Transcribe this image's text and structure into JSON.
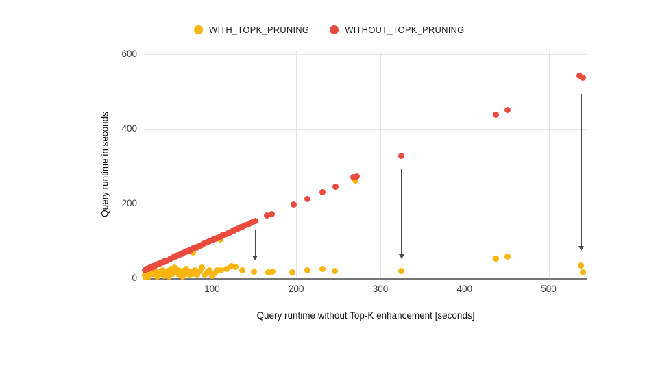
{
  "legend": {
    "series": [
      {
        "label": "WITH_TOPK_PRUNING",
        "color": "#F9B511"
      },
      {
        "label": "WITHOUT_TOPK_PRUNING",
        "color": "#E94C3E"
      }
    ]
  },
  "axes": {
    "x_title": "Query runtime without Top-K enhancement [seconds]",
    "y_title": "Query runtime in seconds"
  },
  "chart_data": {
    "type": "scatter",
    "title": "",
    "xlabel": "Query runtime without Top-K enhancement [seconds]",
    "ylabel": "Query runtime in seconds",
    "xlim": [
      19,
      546
    ],
    "ylim": [
      0,
      608
    ],
    "x_ticks": [
      100,
      200,
      300,
      400,
      500
    ],
    "y_ticks": [
      0,
      200,
      400,
      600
    ],
    "grid": true,
    "legend_position": "top",
    "series": [
      {
        "name": "WITH_TOPK_PRUNING",
        "color": "#F9B511",
        "points": [
          [
            20,
            8
          ],
          [
            21,
            3
          ],
          [
            23,
            14
          ],
          [
            25,
            5
          ],
          [
            27,
            20
          ],
          [
            29,
            10
          ],
          [
            31,
            26
          ],
          [
            33,
            15
          ],
          [
            35,
            4
          ],
          [
            37,
            18
          ],
          [
            39,
            11
          ],
          [
            41,
            22
          ],
          [
            43,
            6
          ],
          [
            45,
            16
          ],
          [
            47,
            19
          ],
          [
            49,
            4
          ],
          [
            51,
            25
          ],
          [
            53,
            12
          ],
          [
            55,
            28
          ],
          [
            57,
            16
          ],
          [
            59,
            22
          ],
          [
            61,
            9
          ],
          [
            63,
            19
          ],
          [
            65,
            5
          ],
          [
            67,
            10
          ],
          [
            69,
            24
          ],
          [
            71,
            13
          ],
          [
            73,
            8
          ],
          [
            75,
            17
          ],
          [
            77,
            68
          ],
          [
            78,
            12
          ],
          [
            80,
            22
          ],
          [
            82,
            9
          ],
          [
            85,
            19
          ],
          [
            88,
            28
          ],
          [
            91,
            8
          ],
          [
            94,
            16
          ],
          [
            97,
            22
          ],
          [
            100,
            6
          ],
          [
            103,
            13
          ],
          [
            106,
            22
          ],
          [
            110,
            103
          ],
          [
            111,
            21
          ],
          [
            117,
            24
          ],
          [
            123,
            32
          ],
          [
            128,
            30
          ],
          [
            136,
            22
          ],
          [
            150,
            18
          ],
          [
            167,
            15
          ],
          [
            172,
            17
          ],
          [
            195,
            15
          ],
          [
            213,
            21
          ],
          [
            231,
            25
          ],
          [
            246,
            19
          ],
          [
            270,
            262
          ],
          [
            325,
            20
          ],
          [
            437,
            53
          ],
          [
            451,
            57
          ],
          [
            538,
            34
          ],
          [
            541,
            16
          ]
        ]
      },
      {
        "name": "WITHOUT_TOPK_PRUNING",
        "color": "#E94C3E",
        "points": [
          [
            20,
            21
          ],
          [
            21,
            23
          ],
          [
            22,
            24
          ],
          [
            24,
            25
          ],
          [
            25,
            27
          ],
          [
            26,
            28
          ],
          [
            28,
            29
          ],
          [
            29,
            31
          ],
          [
            30,
            32
          ],
          [
            32,
            33
          ],
          [
            33,
            35
          ],
          [
            34,
            36
          ],
          [
            36,
            37
          ],
          [
            37,
            39
          ],
          [
            38,
            40
          ],
          [
            40,
            41
          ],
          [
            41,
            43
          ],
          [
            43,
            44
          ],
          [
            44,
            46
          ],
          [
            46,
            47
          ],
          [
            50,
            52
          ],
          [
            51,
            53
          ],
          [
            53,
            55
          ],
          [
            54,
            56
          ],
          [
            56,
            57
          ],
          [
            57,
            59
          ],
          [
            59,
            61
          ],
          [
            60,
            62
          ],
          [
            62,
            64
          ],
          [
            64,
            65
          ],
          [
            65,
            67
          ],
          [
            67,
            69
          ],
          [
            69,
            70
          ],
          [
            70,
            72
          ],
          [
            72,
            74
          ],
          [
            74,
            75
          ],
          [
            75,
            77
          ],
          [
            77,
            79
          ],
          [
            79,
            81
          ],
          [
            81,
            82
          ],
          [
            82,
            84
          ],
          [
            84,
            86
          ],
          [
            86,
            88
          ],
          [
            88,
            90
          ],
          [
            90,
            92
          ],
          [
            92,
            94
          ],
          [
            94,
            96
          ],
          [
            96,
            98
          ],
          [
            98,
            100
          ],
          [
            100,
            102
          ],
          [
            102,
            104
          ],
          [
            104,
            106
          ],
          [
            106,
            108
          ],
          [
            108,
            110
          ],
          [
            110,
            112
          ],
          [
            112,
            114
          ],
          [
            114,
            116
          ],
          [
            117,
            119
          ],
          [
            119,
            121
          ],
          [
            121,
            123
          ],
          [
            124,
            126
          ],
          [
            126,
            128
          ],
          [
            129,
            131
          ],
          [
            131,
            133
          ],
          [
            134,
            136
          ],
          [
            137,
            139
          ],
          [
            140,
            142
          ],
          [
            143,
            145
          ],
          [
            146,
            148
          ],
          [
            149,
            151
          ],
          [
            151,
            153
          ],
          [
            165,
            168
          ],
          [
            171,
            171
          ],
          [
            197,
            197
          ],
          [
            213,
            212
          ],
          [
            231,
            230
          ],
          [
            247,
            246
          ],
          [
            268,
            271
          ],
          [
            272,
            272
          ],
          [
            325,
            327
          ],
          [
            437,
            438
          ],
          [
            451,
            451
          ],
          [
            537,
            542
          ],
          [
            541,
            538
          ]
        ]
      }
    ],
    "annotations": {
      "arrows": [
        {
          "x": 151,
          "y_from": 131,
          "y_to": 48
        },
        {
          "x": 325,
          "y_from": 293,
          "y_to": 52
        },
        {
          "x": 539,
          "y_from": 494,
          "y_to": 74
        }
      ]
    }
  },
  "style": {
    "gridline_color": "#e3e3e3",
    "axis_line_color": "#757575",
    "tick_color": "#3c3c3c",
    "arrow_color": "#4a4a4a"
  }
}
